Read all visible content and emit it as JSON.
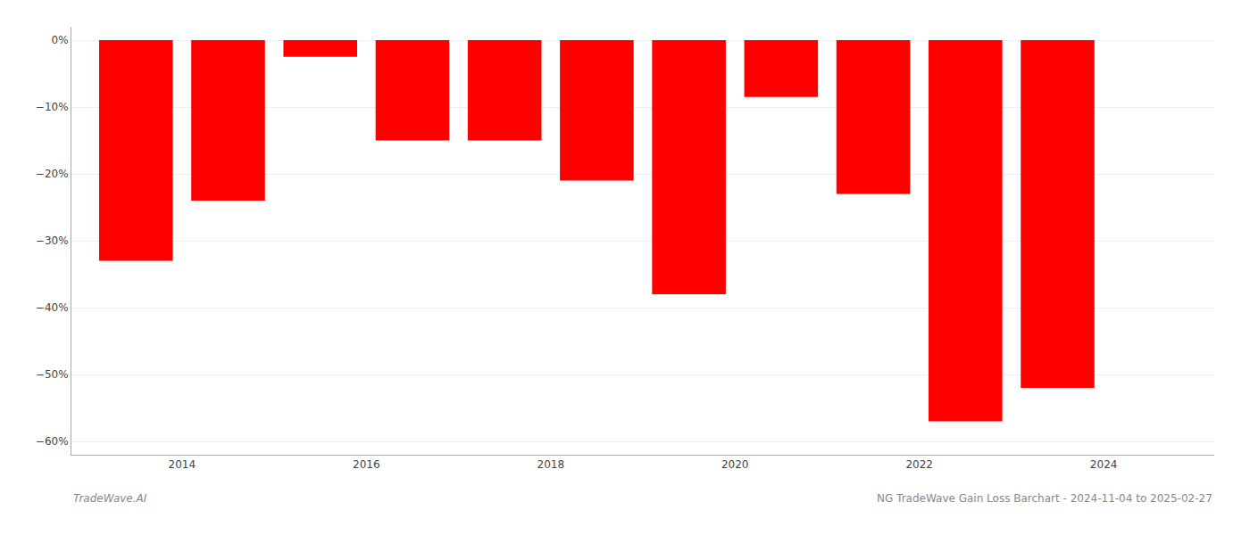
{
  "chart_data": {
    "type": "bar",
    "x": [
      2013.5,
      2014.5,
      2015.5,
      2016.5,
      2017.5,
      2018.5,
      2019.5,
      2020.5,
      2021.5,
      2022.5,
      2023.5
    ],
    "values": [
      -33.0,
      -24.0,
      -2.5,
      -15.0,
      -15.0,
      -21.0,
      -38.0,
      -8.5,
      -23.0,
      -57.0,
      -52.0
    ],
    "color": "#ff0000",
    "xlim": [
      2012.8,
      2025.2
    ],
    "ylim": [
      -62,
      2
    ],
    "xticks": [
      2014,
      2016,
      2018,
      2020,
      2022,
      2024
    ],
    "yticks": [
      {
        "value": 0,
        "label": "0%"
      },
      {
        "value": -10,
        "label": "−10%"
      },
      {
        "value": -20,
        "label": "−20%"
      },
      {
        "value": -30,
        "label": "−30%"
      },
      {
        "value": -40,
        "label": "−40%"
      },
      {
        "value": -50,
        "label": "−50%"
      },
      {
        "value": -60,
        "label": "−60%"
      }
    ],
    "grid": true,
    "annotations": [
      "TradeWave.AI",
      "NG TradeWave Gain Loss Barchart - 2024-11-04 to 2025-02-27"
    ]
  }
}
